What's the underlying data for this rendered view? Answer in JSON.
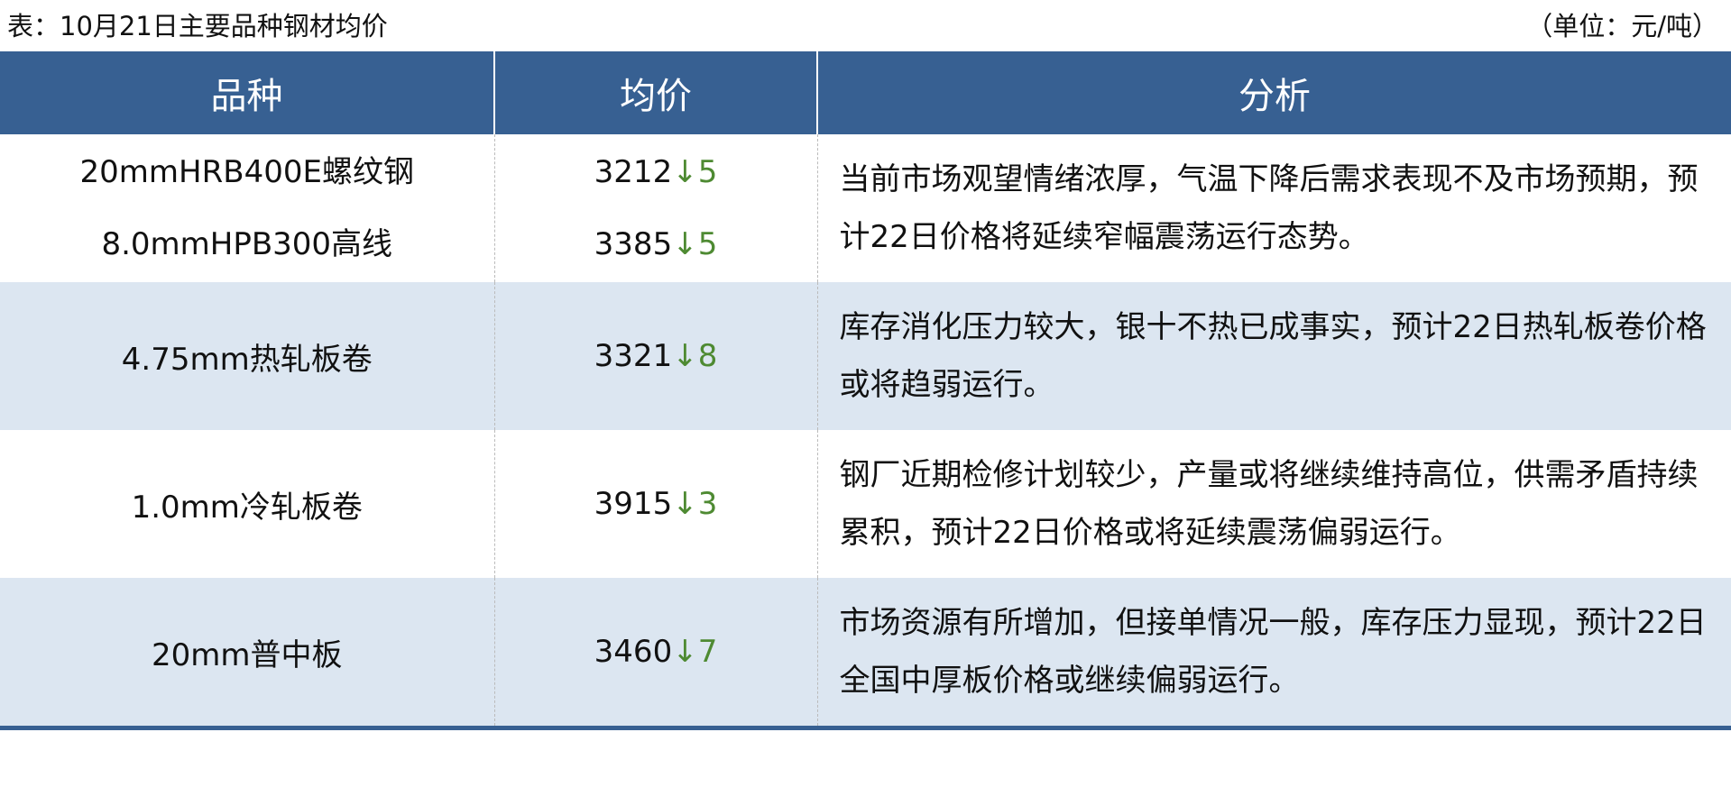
{
  "caption": "表：10月21日主要品种钢材均价",
  "unit": "（单位：元/吨）",
  "headers": [
    "品种",
    "均价",
    "分析"
  ],
  "arrow_color": "#4e8a32",
  "header_color": "#376092",
  "rows": [
    {
      "products": [
        {
          "name": "20mmHRB400E螺纹钢",
          "price": "3212",
          "change": "↓5"
        },
        {
          "name": "8.0mmHPB300高线",
          "price": "3385",
          "change": "↓5"
        }
      ],
      "analysis": "当前市场观望情绪浓厚，气温下降后需求表现不及市场预期，预计22日价格将延续窄幅震荡运行态势。"
    },
    {
      "products": [
        {
          "name": "4.75mm热轧板卷",
          "price": "3321",
          "change": "↓8"
        }
      ],
      "analysis": "库存消化压力较大，银十不热已成事实，预计22日热轧板卷价格或将趋弱运行。"
    },
    {
      "products": [
        {
          "name": "1.0mm冷轧板卷",
          "price": "3915",
          "change": "↓3"
        }
      ],
      "analysis": "钢厂近期检修计划较少，产量或将继续维持高位，供需矛盾持续累积，预计22日价格或将延续震荡偏弱运行。"
    },
    {
      "products": [
        {
          "name": "20mm普中板",
          "price": "3460",
          "change": "↓7"
        }
      ],
      "analysis": "市场资源有所增加，但接单情况一般，库存压力显现，预计22日全国中厚板价格或继续偏弱运行。"
    }
  ]
}
